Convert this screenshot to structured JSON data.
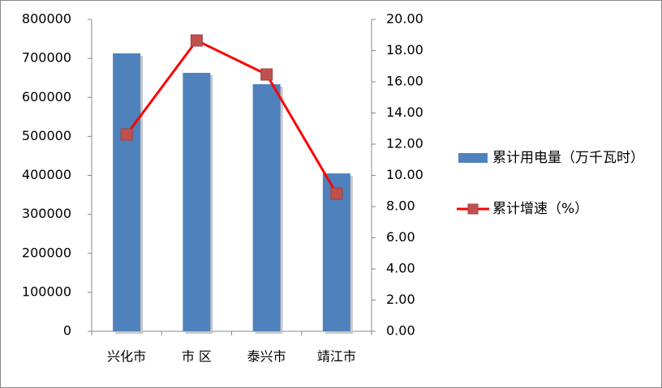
{
  "chart_data": {
    "type": "bar",
    "categories": [
      "兴化市",
      "市 区",
      "泰兴市",
      "靖江市"
    ],
    "series": [
      {
        "name": "累计用电量（万千瓦时）",
        "type": "bar",
        "color": "#4f81bd",
        "values": [
          713000,
          663000,
          634000,
          405000
        ]
      },
      {
        "name": "累计增速（%）",
        "type": "line",
        "axis": "y2",
        "color": "#ff0000",
        "marker_color": "#c0504d",
        "values": [
          12.62,
          18.65,
          16.47,
          8.83
        ]
      }
    ],
    "ylim": [
      0,
      800000
    ],
    "yticks": [
      0,
      100000,
      200000,
      300000,
      400000,
      500000,
      600000,
      700000,
      800000
    ],
    "y2lim": [
      0,
      20
    ],
    "y2ticks": [
      {
        "value": 0,
        "label": "0.00"
      },
      {
        "value": 2,
        "label": "2.00"
      },
      {
        "value": 4,
        "label": "4.00"
      },
      {
        "value": 6,
        "label": "6.00"
      },
      {
        "value": 8,
        "label": "8.00"
      },
      {
        "value": 10,
        "label": "10.00"
      },
      {
        "value": 12,
        "label": "12.00"
      },
      {
        "value": 14,
        "label": "14.00"
      },
      {
        "value": 16,
        "label": "16.00"
      },
      {
        "value": 18,
        "label": "18.00"
      },
      {
        "value": 20,
        "label": "20.00"
      }
    ],
    "legend": "right"
  }
}
